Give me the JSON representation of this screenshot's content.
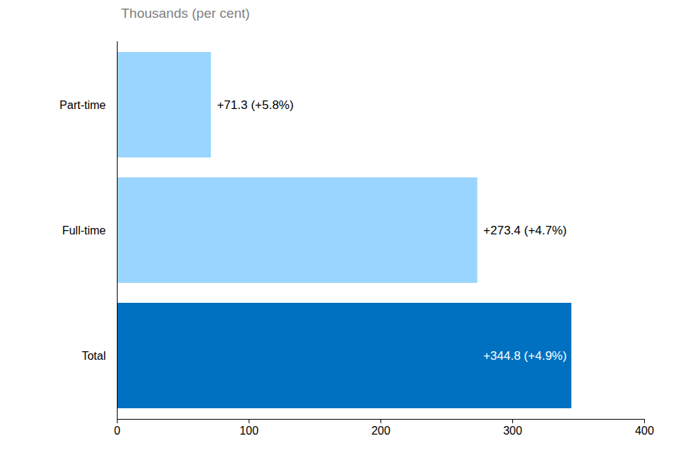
{
  "chart_data": {
    "type": "bar",
    "orientation": "horizontal",
    "subtitle": "Thousands (per cent)",
    "categories": [
      "Part-time",
      "Full-time",
      "Total"
    ],
    "values": [
      71.3,
      273.4,
      344.8
    ],
    "value_labels": [
      "+71.3 (+5.8%)",
      "+273.4 (+4.7%)",
      "+344.8 (+4.9%)"
    ],
    "colors": [
      "#99d5ff",
      "#99d5ff",
      "#0070c0"
    ],
    "xlim": [
      0,
      400
    ],
    "xticks": [
      0,
      100,
      200,
      300,
      400
    ],
    "data_labels": true,
    "grid": false
  }
}
